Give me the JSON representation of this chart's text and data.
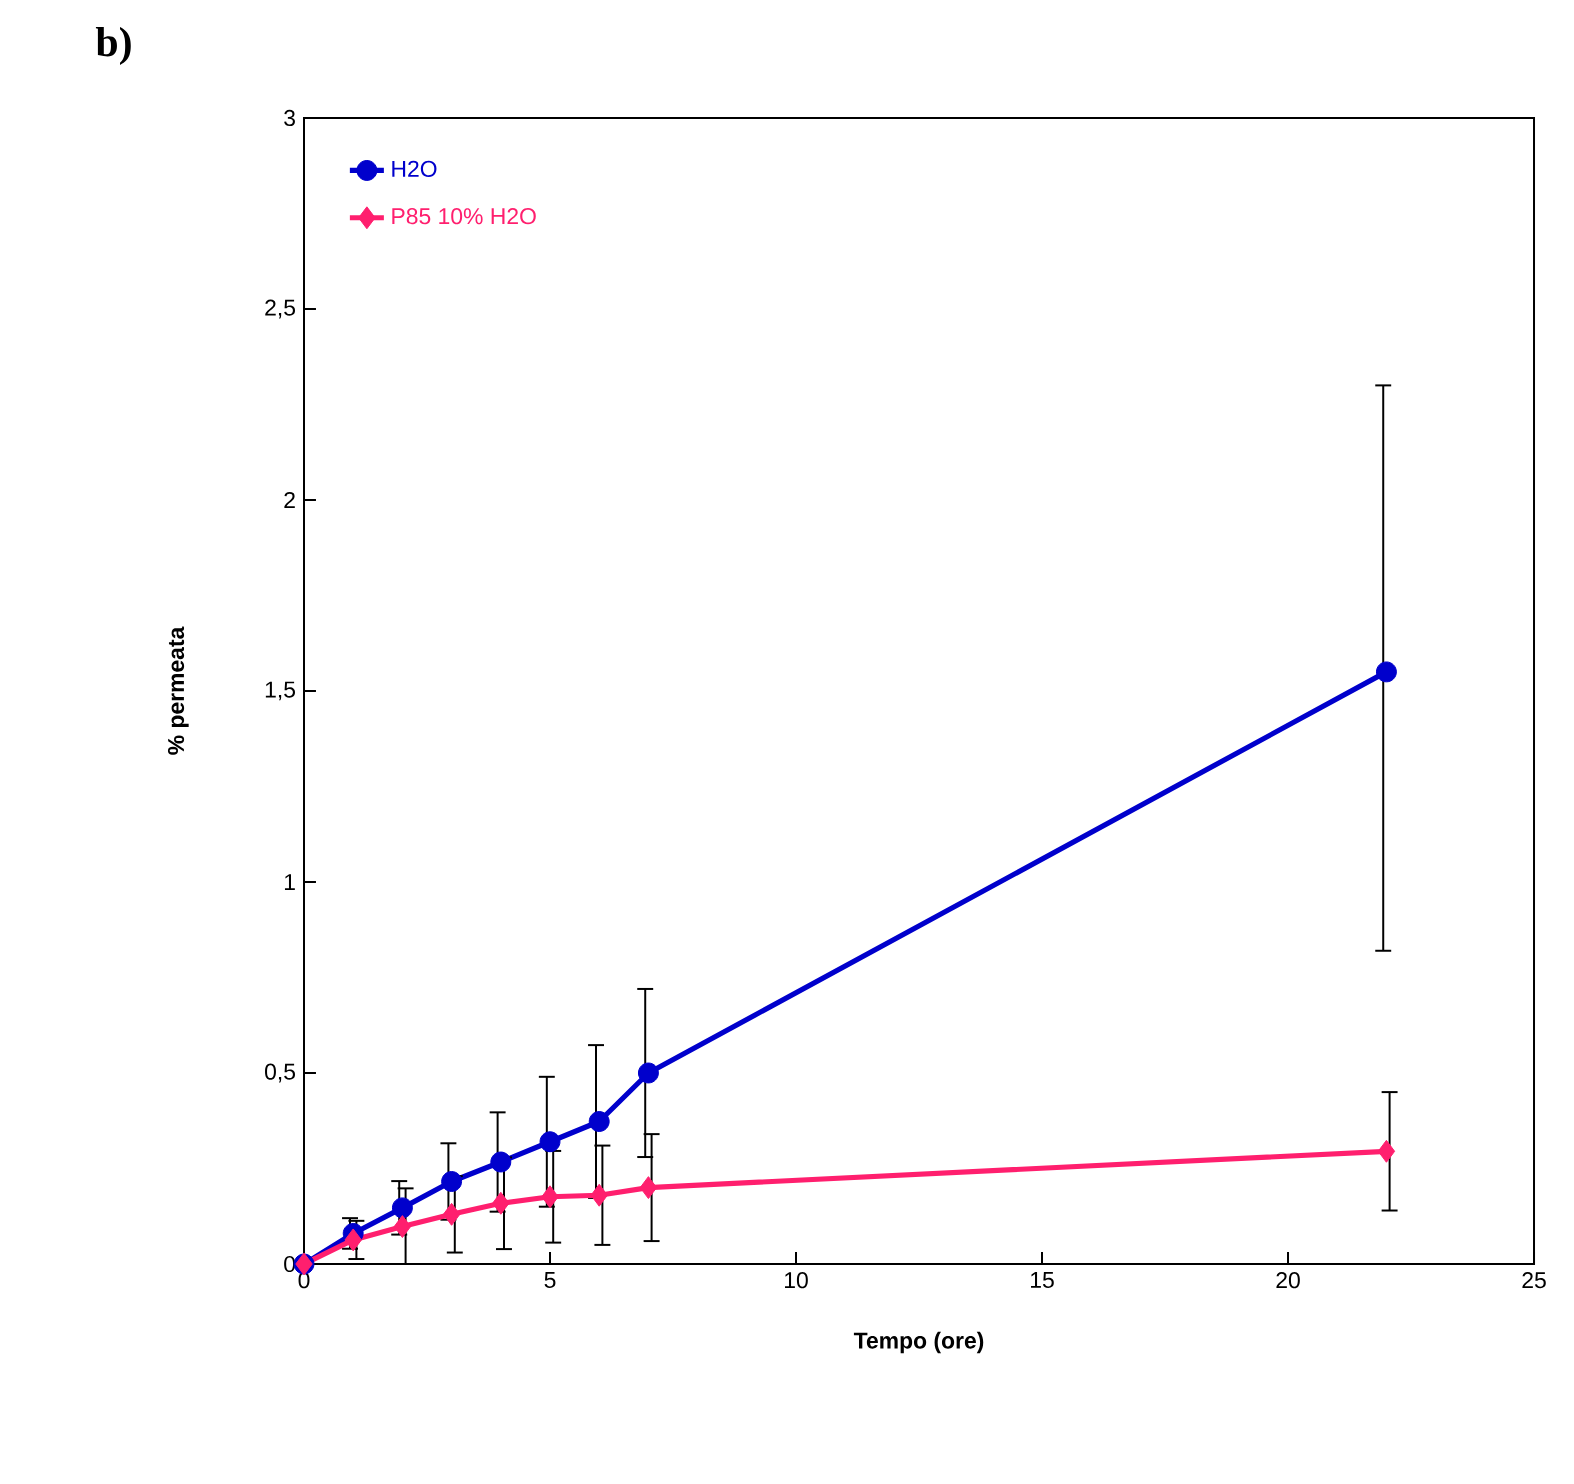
{
  "chart_data": {
    "type": "line",
    "title": "b)",
    "xlabel": "Tempo (ore)",
    "ylabel": "% permeata",
    "xlim": [
      0,
      25
    ],
    "xticks": [
      0,
      5,
      10,
      15,
      20,
      25
    ],
    "ylim": [
      0,
      3
    ],
    "yticks": [
      0,
      {
        "value": 0.5,
        "label": "0,5"
      },
      1,
      {
        "value": 1.5,
        "label": "1,5"
      },
      2,
      {
        "value": 2.5,
        "label": "2,5"
      },
      3
    ],
    "x": [
      0,
      1,
      2,
      3,
      4,
      5,
      6,
      7,
      22
    ],
    "series": [
      {
        "name": "H2O",
        "color": "#0000cc",
        "marker": "circle",
        "values": [
          0,
          0.08,
          0.147,
          0.216,
          0.267,
          0.32,
          0.373,
          0.5,
          1.55
        ],
        "errors": [
          null,
          0.04,
          0.07,
          0.1,
          0.13,
          0.17,
          0.2,
          0.22,
          [
            0.82,
            2.3
          ]
        ]
      },
      {
        "name": "P85 10% H2O",
        "color": "#ff1f6e",
        "marker": "diamond",
        "values": [
          0,
          0.063,
          0.098,
          0.13,
          0.159,
          0.176,
          0.18,
          0.2,
          0.295
        ],
        "errors": [
          null,
          0.05,
          0.1,
          0.1,
          0.12,
          0.12,
          0.13,
          0.14,
          [
            0.14,
            0.45
          ]
        ]
      }
    ],
    "legend": "top left",
    "grid": false,
    "line_style": "solid"
  }
}
